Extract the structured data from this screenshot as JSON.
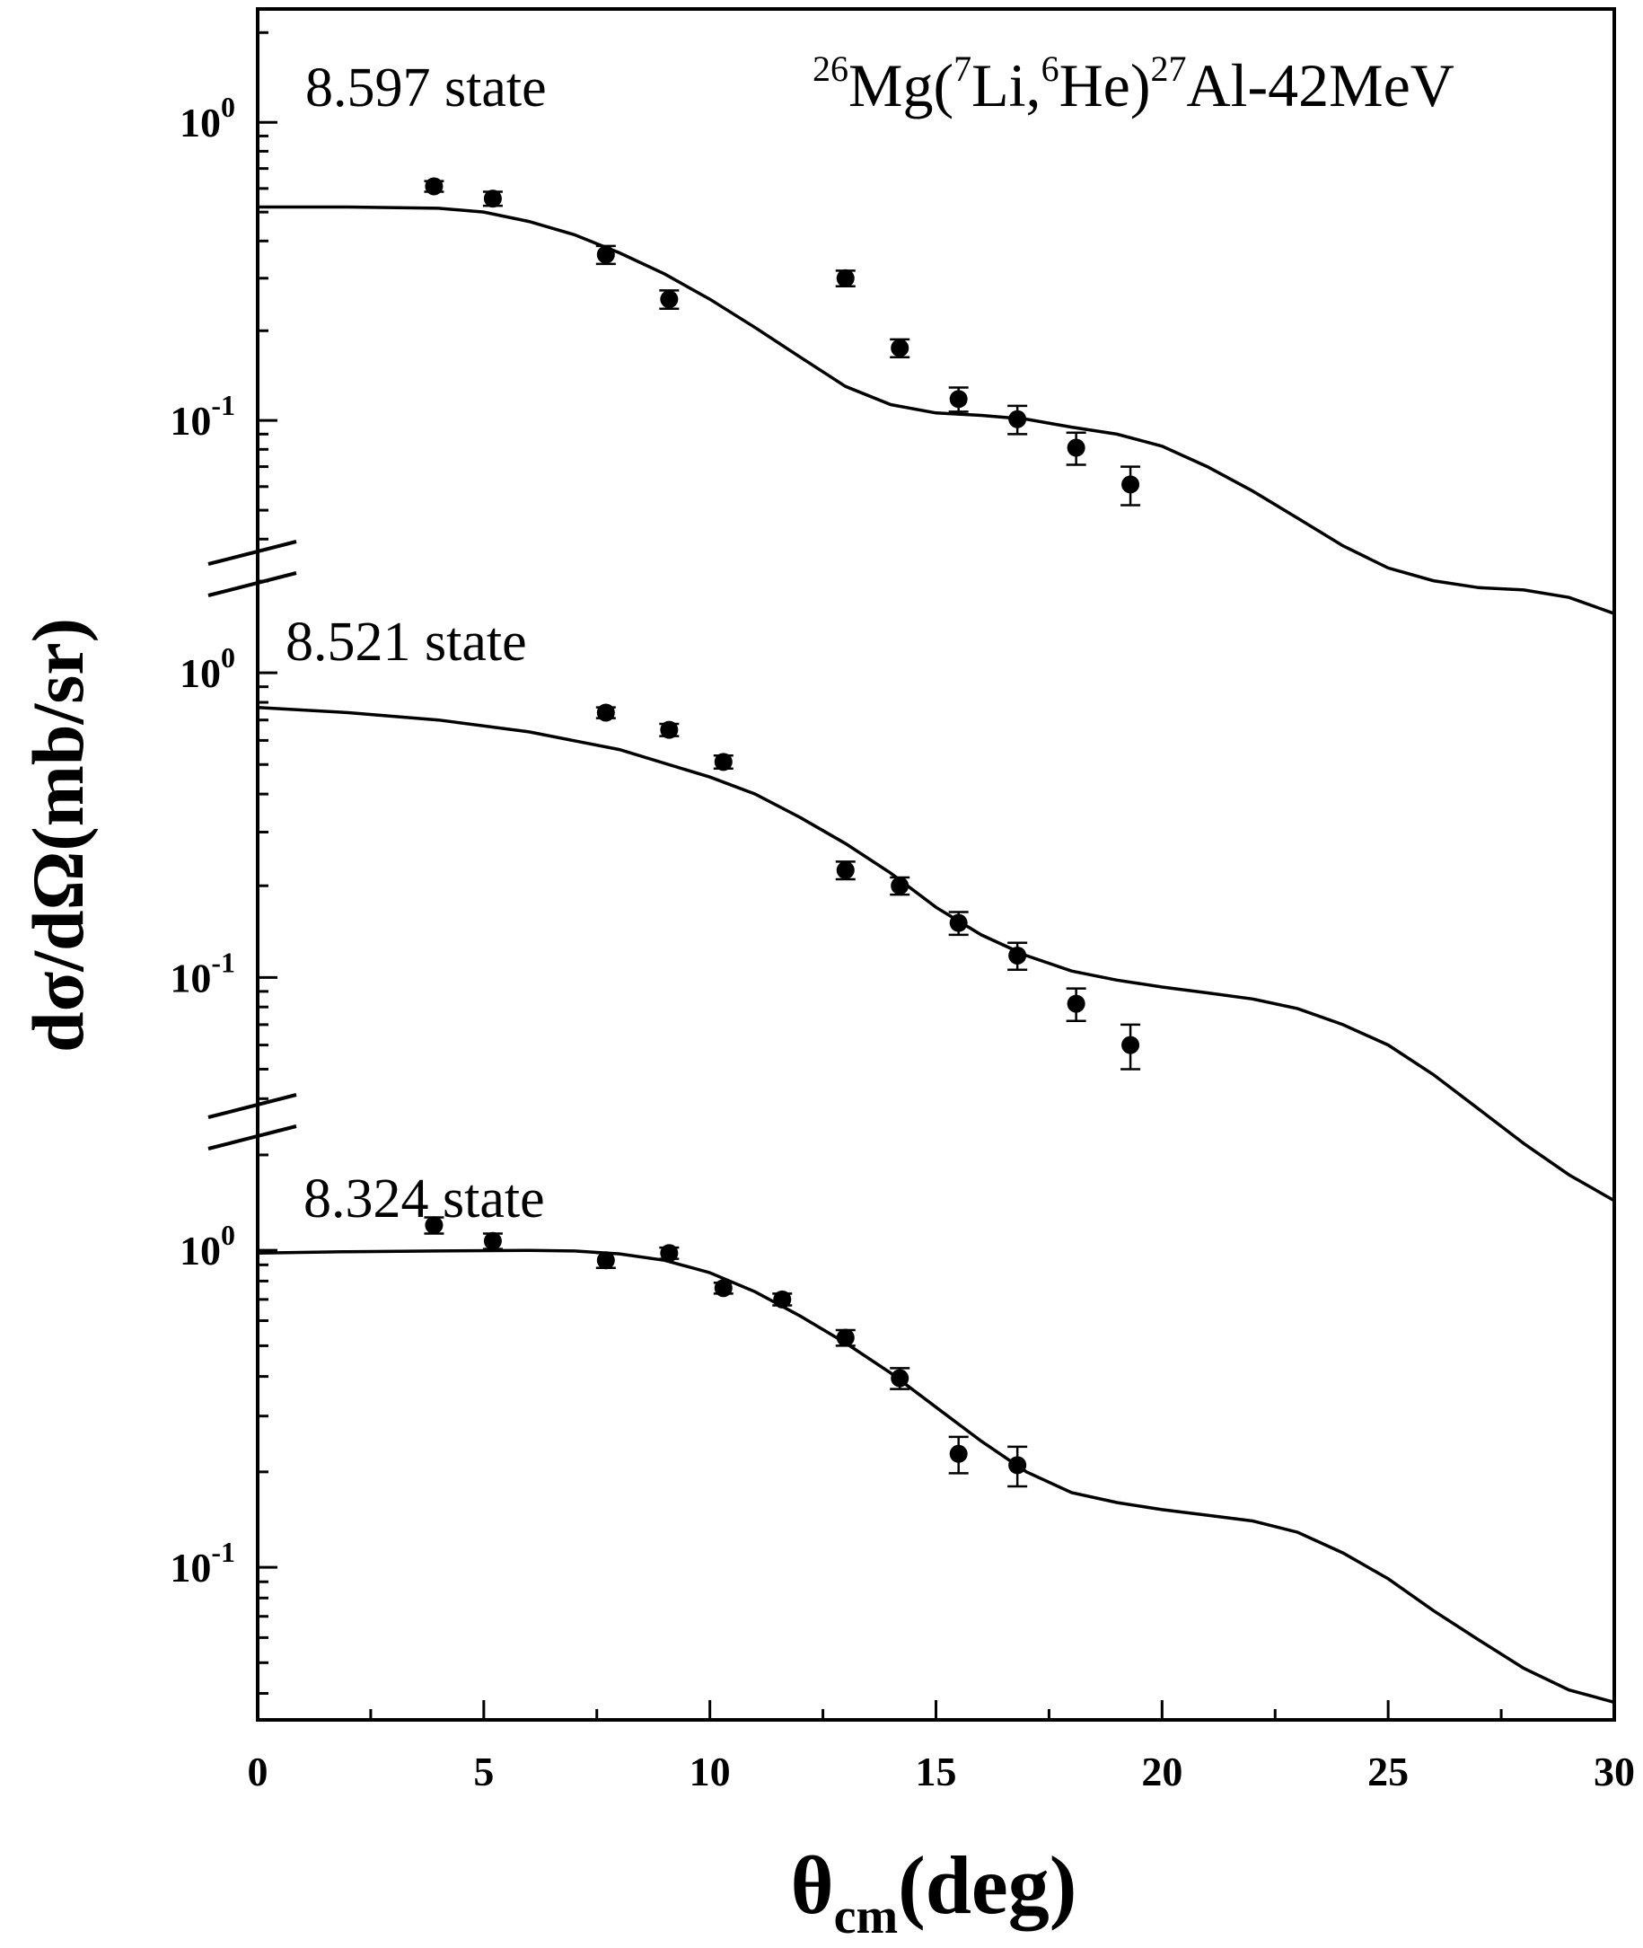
{
  "chart_data": {
    "type": "scatter",
    "reaction": {
      "mass_target": "26",
      "target": "Mg",
      "open": "(",
      "proj_mass": "7",
      "proj": "Li,",
      "eject_mass": "6",
      "eject": "He",
      "close": ")",
      "resid_mass": "27",
      "resid": "Al-42MeV"
    },
    "xlabel": {
      "base": "θ",
      "sub": "cm",
      "unit": "(deg)"
    },
    "ylabel": "dσ/dΩ(mb/sr)",
    "xlim": [
      0,
      30
    ],
    "xticks": [
      "0",
      "5",
      "10",
      "15",
      "20",
      "25",
      "30"
    ],
    "yscale": "log",
    "ytick_labels": [
      {
        "base": "10",
        "exp": "0"
      },
      {
        "base": "10",
        "exp": "-1"
      }
    ],
    "panels": [
      {
        "label": "8.597 state",
        "ylim": [
          0.033,
          2.4
        ],
        "data": [
          {
            "x": 3.9,
            "y": 0.61,
            "err": 0.025
          },
          {
            "x": 5.2,
            "y": 0.555,
            "err": 0.03
          },
          {
            "x": 7.7,
            "y": 0.36,
            "err": 0.025
          },
          {
            "x": 9.1,
            "y": 0.255,
            "err": 0.018
          },
          {
            "x": 13.0,
            "y": 0.3,
            "err": 0.018
          },
          {
            "x": 14.2,
            "y": 0.175,
            "err": 0.012
          },
          {
            "x": 15.5,
            "y": 0.118,
            "err": 0.011
          },
          {
            "x": 16.8,
            "y": 0.101,
            "err": 0.011
          },
          {
            "x": 18.1,
            "y": 0.081,
            "err": 0.01
          },
          {
            "x": 19.3,
            "y": 0.061,
            "err": 0.009
          }
        ],
        "curve": [
          [
            0,
            0.52
          ],
          [
            2,
            0.52
          ],
          [
            4,
            0.515
          ],
          [
            5,
            0.5
          ],
          [
            6,
            0.465
          ],
          [
            7,
            0.42
          ],
          [
            8,
            0.365
          ],
          [
            9,
            0.31
          ],
          [
            10,
            0.255
          ],
          [
            11,
            0.205
          ],
          [
            12,
            0.163
          ],
          [
            13,
            0.13
          ],
          [
            14,
            0.113
          ],
          [
            15,
            0.106
          ],
          [
            16,
            0.104
          ],
          [
            17,
            0.101
          ],
          [
            18,
            0.095
          ],
          [
            19,
            0.09
          ],
          [
            20,
            0.082
          ],
          [
            21,
            0.07
          ],
          [
            22,
            0.058
          ],
          [
            23,
            0.047
          ],
          [
            24,
            0.038
          ],
          [
            25,
            0.032
          ],
          [
            26,
            0.029
          ],
          [
            27,
            0.0275
          ],
          [
            28,
            0.027
          ],
          [
            29,
            0.0255
          ],
          [
            30,
            0.0225
          ]
        ]
      },
      {
        "label": "8.521 state",
        "ylim": [
          0.035,
          2.2
        ],
        "data": [
          {
            "x": 7.7,
            "y": 0.74,
            "err": 0.03
          },
          {
            "x": 9.1,
            "y": 0.65,
            "err": 0.03
          },
          {
            "x": 10.3,
            "y": 0.51,
            "err": 0.025
          },
          {
            "x": 13.0,
            "y": 0.225,
            "err": 0.015
          },
          {
            "x": 14.2,
            "y": 0.2,
            "err": 0.013
          },
          {
            "x": 15.5,
            "y": 0.151,
            "err": 0.013
          },
          {
            "x": 16.8,
            "y": 0.118,
            "err": 0.012
          },
          {
            "x": 18.1,
            "y": 0.082,
            "err": 0.01
          },
          {
            "x": 19.3,
            "y": 0.06,
            "err": 0.01
          }
        ],
        "curve": [
          [
            0,
            0.77
          ],
          [
            2,
            0.74
          ],
          [
            4,
            0.7
          ],
          [
            6,
            0.64
          ],
          [
            8,
            0.56
          ],
          [
            10,
            0.455
          ],
          [
            11,
            0.4
          ],
          [
            12,
            0.335
          ],
          [
            13,
            0.275
          ],
          [
            14,
            0.22
          ],
          [
            15,
            0.17
          ],
          [
            16,
            0.138
          ],
          [
            17,
            0.118
          ],
          [
            18,
            0.105
          ],
          [
            19,
            0.098
          ],
          [
            20,
            0.093
          ],
          [
            21,
            0.089
          ],
          [
            22,
            0.085
          ],
          [
            23,
            0.079
          ],
          [
            24,
            0.07
          ],
          [
            25,
            0.06
          ],
          [
            26,
            0.048
          ],
          [
            27,
            0.037
          ],
          [
            28,
            0.0285
          ],
          [
            29,
            0.0225
          ],
          [
            30,
            0.0185
          ]
        ]
      },
      {
        "label": "8.324 state",
        "ylim": [
          0.033,
          2.4
        ],
        "data": [
          {
            "x": 3.9,
            "y": 1.2,
            "err": 0.07
          },
          {
            "x": 5.2,
            "y": 1.07,
            "err": 0.06
          },
          {
            "x": 7.7,
            "y": 0.93,
            "err": 0.05
          },
          {
            "x": 9.1,
            "y": 0.98,
            "err": 0.04
          },
          {
            "x": 10.3,
            "y": 0.76,
            "err": 0.03
          },
          {
            "x": 11.6,
            "y": 0.7,
            "err": 0.03
          },
          {
            "x": 13.0,
            "y": 0.53,
            "err": 0.03
          },
          {
            "x": 14.2,
            "y": 0.395,
            "err": 0.03
          },
          {
            "x": 15.5,
            "y": 0.228,
            "err": 0.03
          },
          {
            "x": 16.8,
            "y": 0.21,
            "err": 0.03
          }
        ],
        "curve": [
          [
            0,
            0.98
          ],
          [
            2,
            0.99
          ],
          [
            4,
            0.995
          ],
          [
            6,
            1.0
          ],
          [
            7,
            0.995
          ],
          [
            8,
            0.975
          ],
          [
            9,
            0.93
          ],
          [
            10,
            0.85
          ],
          [
            11,
            0.74
          ],
          [
            12,
            0.62
          ],
          [
            13,
            0.51
          ],
          [
            14,
            0.41
          ],
          [
            15,
            0.32
          ],
          [
            16,
            0.25
          ],
          [
            17,
            0.2
          ],
          [
            18,
            0.172
          ],
          [
            19,
            0.16
          ],
          [
            20,
            0.152
          ],
          [
            21,
            0.146
          ],
          [
            22,
            0.14
          ],
          [
            23,
            0.129
          ],
          [
            24,
            0.111
          ],
          [
            25,
            0.092
          ],
          [
            26,
            0.073
          ],
          [
            27,
            0.059
          ],
          [
            28,
            0.048
          ],
          [
            29,
            0.041
          ],
          [
            30,
            0.0375
          ]
        ]
      }
    ]
  }
}
